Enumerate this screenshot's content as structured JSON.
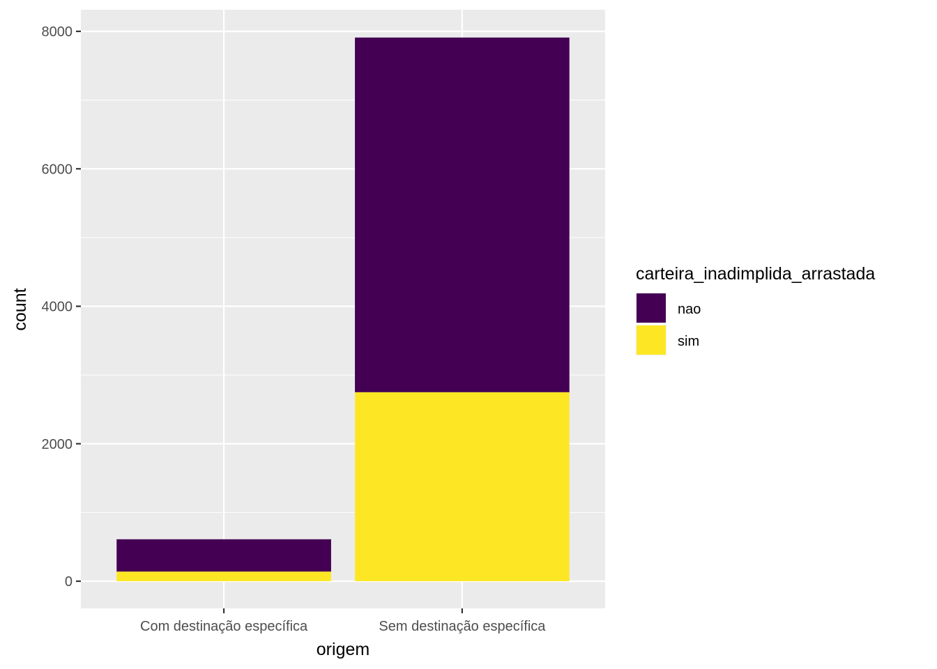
{
  "chart_data": {
    "type": "bar",
    "stacked": true,
    "categories": [
      "Com destinação específica",
      "Sem destinação específica"
    ],
    "series": [
      {
        "name": "sim",
        "values": [
          140,
          2750
        ]
      },
      {
        "name": "nao",
        "values": [
          470,
          5160
        ]
      }
    ],
    "xlabel": "origem",
    "ylabel": "count",
    "ylim": [
      -380,
      8310
    ],
    "yticks": [
      0,
      2000,
      4000,
      6000,
      8000
    ],
    "ytick_labels": [
      "0",
      "2000",
      "4000",
      "6000",
      "8000"
    ],
    "grid": true,
    "legend": {
      "title": "carteira_inadimplida_arrastada",
      "position": "right",
      "entries": [
        {
          "label": "nao",
          "color": "#440154"
        },
        {
          "label": "sim",
          "color": "#FDE725"
        }
      ]
    },
    "colors": {
      "nao": "#440154",
      "sim": "#FDE725",
      "panel_background": "#EBEBEB",
      "grid": "#FFFFFF"
    }
  }
}
